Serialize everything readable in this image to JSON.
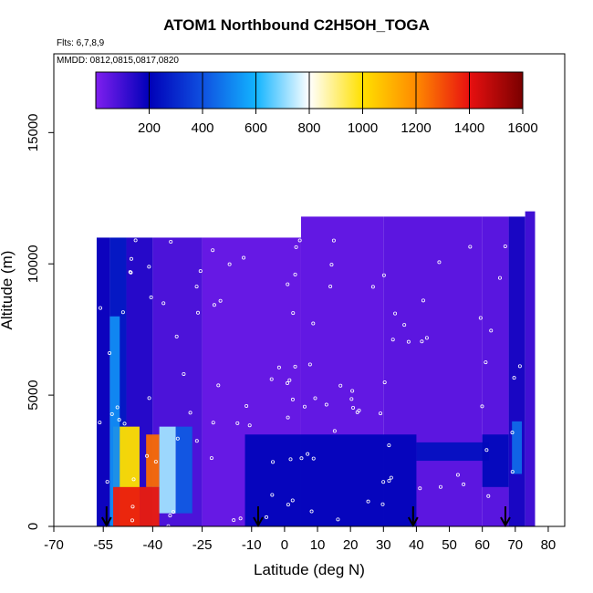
{
  "title": "ATOM1 Northbound C2H5OH_TOGA",
  "flights_label": "Flts: 6,7,8,9",
  "dates_label": "MMDD: 0812,0815,0817,0820",
  "chart_data": {
    "type": "heatmap",
    "title": "ATOM1 Northbound C2H5OH_TOGA",
    "xlabel": "Latitude (deg N)",
    "ylabel": "Altitude (m)",
    "xlim": [
      -70,
      85
    ],
    "ylim": [
      0,
      18000
    ],
    "x_ticks": [
      -70,
      -55,
      -40,
      -25,
      -10,
      0,
      10,
      20,
      30,
      40,
      50,
      60,
      70,
      80
    ],
    "x_tick_labels": [
      "-70",
      "-55",
      "-40",
      "-25",
      "-10",
      "0",
      "10",
      "20",
      "30",
      "40",
      "50",
      "60",
      "70",
      "80"
    ],
    "y_ticks": [
      0,
      5000,
      10000,
      15000
    ],
    "y_tick_labels": [
      "0",
      "5000",
      "10000",
      "15000"
    ],
    "colorbar": {
      "range": [
        0,
        1600
      ],
      "ticks": [
        200,
        400,
        600,
        800,
        1000,
        1200,
        1400,
        1600
      ],
      "tick_labels": [
        "200",
        "400",
        "600",
        "800",
        "1000",
        "1200",
        "1400",
        "1600"
      ],
      "colors": [
        "#7f1fef",
        "#0000b8",
        "#0f50e0",
        "#12b4ff",
        "#ffffff",
        "#ffe000",
        "#ff8a00",
        "#e81010",
        "#7a0000"
      ]
    },
    "arrows_latitude": [
      -54,
      -8,
      39,
      67
    ],
    "columns": [
      {
        "lat": [
          -57,
          -53
        ],
        "alt": [
          0,
          11000
        ],
        "value": 180
      },
      {
        "lat": [
          -53,
          -48
        ],
        "alt": [
          0,
          11000
        ],
        "value": 260
      },
      {
        "lat": [
          -48,
          -40
        ],
        "alt": [
          0,
          11000
        ],
        "value": 140
      },
      {
        "lat": [
          -40,
          -25
        ],
        "alt": [
          0,
          11000
        ],
        "value": 80
      },
      {
        "lat": [
          -25,
          5
        ],
        "alt": [
          0,
          11000
        ],
        "value": 40
      },
      {
        "lat": [
          5,
          30
        ],
        "alt": [
          0,
          11800
        ],
        "value": 45
      },
      {
        "lat": [
          30,
          60
        ],
        "alt": [
          0,
          11800
        ],
        "value": 55
      },
      {
        "lat": [
          60,
          68
        ],
        "alt": [
          0,
          11800
        ],
        "value": 60
      },
      {
        "lat": [
          68,
          73
        ],
        "alt": [
          0,
          11800
        ],
        "value": 160
      },
      {
        "lat": [
          73,
          76
        ],
        "alt": [
          0,
          12000
        ],
        "value": 100
      }
    ],
    "hotspots": [
      {
        "lat": [
          -52,
          -44
        ],
        "alt": [
          0,
          3800
        ],
        "value": 1000
      },
      {
        "lat": [
          -53,
          -50
        ],
        "alt": [
          0,
          8000
        ],
        "value": 520
      },
      {
        "lat": [
          -52,
          -38
        ],
        "alt": [
          0,
          1500
        ],
        "value": 1380
      },
      {
        "lat": [
          -42,
          -38
        ],
        "alt": [
          1500,
          3500
        ],
        "value": 1250
      },
      {
        "lat": [
          -38,
          -33
        ],
        "alt": [
          500,
          3800
        ],
        "value": 720
      },
      {
        "lat": [
          -33,
          -28
        ],
        "alt": [
          500,
          3800
        ],
        "value": 420
      },
      {
        "lat": [
          -12,
          40
        ],
        "alt": [
          0,
          3500
        ],
        "value": 210
      },
      {
        "lat": [
          40,
          62
        ],
        "alt": [
          2500,
          3200
        ],
        "value": 240
      },
      {
        "lat": [
          60,
          68
        ],
        "alt": [
          1500,
          3500
        ],
        "value": 220
      },
      {
        "lat": [
          69,
          72
        ],
        "alt": [
          2000,
          4000
        ],
        "value": 450
      }
    ]
  }
}
